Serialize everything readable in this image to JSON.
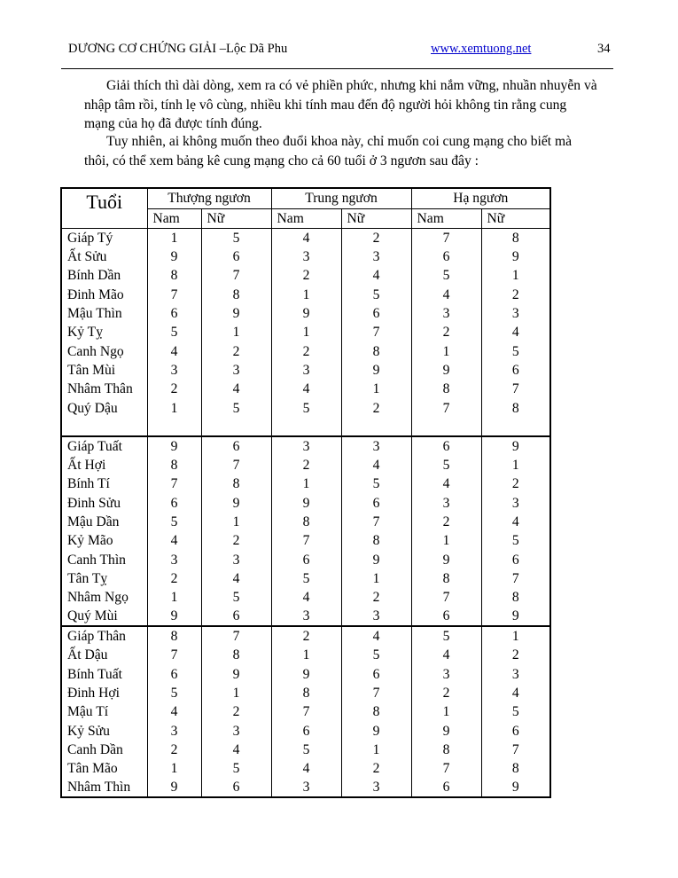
{
  "header": {
    "title": "DƯƠNG CƠ CHỨNG GIẢI –Lộc Dã Phu",
    "link": "www.xemtuong.net",
    "page_number": "34"
  },
  "paragraphs": [
    "Giải thích thì dài dòng, xem ra có vẻ phiền phức, nhưng khi nắm vững, nhuần nhuyễn và nhập tâm rồi, tính lẹ vô cùng, nhiều khi tính mau đến độ người hỏi không tin rằng cung mạng của họ đã được tính đúng.",
    "Tuy nhiên, ai không muốn theo đuổi khoa này, chỉ muốn coi cung mạng cho biết mà thôi, có thể xem bảng kê cung mạng cho cả 60 tuổi ở 3 ngươn sau đây :"
  ],
  "table": {
    "tuoi_header": "Tuổi",
    "groups": [
      "Thượng ngươn",
      "Trung ngươn",
      "Hạ ngươn"
    ],
    "sub": [
      "Nam",
      "Nữ",
      "Nam",
      "Nữ",
      "Nam",
      "Nữ"
    ],
    "sections": [
      [
        [
          "Giáp Tý",
          "1",
          "5",
          "4",
          "2",
          "7",
          "8"
        ],
        [
          "Ất Sửu",
          "9",
          "6",
          "3",
          "3",
          "6",
          "9"
        ],
        [
          "Bính Dần",
          "8",
          "7",
          "2",
          "4",
          "5",
          "1"
        ],
        [
          "Đinh Mão",
          "7",
          "8",
          "1",
          "5",
          "4",
          "2"
        ],
        [
          "Mậu Thìn",
          "6",
          "9",
          "9",
          "6",
          "3",
          "3"
        ],
        [
          "Kỷ Tỵ",
          "5",
          "1",
          "1",
          "7",
          "2",
          "4"
        ],
        [
          "Canh Ngọ",
          "4",
          "2",
          "2",
          "8",
          "1",
          "5"
        ],
        [
          "Tân Mùi",
          "3",
          "3",
          "3",
          "9",
          "9",
          "6"
        ],
        [
          "Nhâm Thân",
          "2",
          "4",
          "4",
          "1",
          "8",
          "7"
        ],
        [
          "Quý Dậu",
          "1",
          "5",
          "5",
          "2",
          "7",
          "8"
        ]
      ],
      [
        [
          "Giáp Tuất",
          "9",
          "6",
          "3",
          "3",
          "6",
          "9"
        ],
        [
          "Ất Hợi",
          "8",
          "7",
          "2",
          "4",
          "5",
          "1"
        ],
        [
          "Bính Tí",
          "7",
          "8",
          "1",
          "5",
          "4",
          "2"
        ],
        [
          "Đinh Sửu",
          "6",
          "9",
          "9",
          "6",
          "3",
          "3"
        ],
        [
          "Mậu Dần",
          "5",
          "1",
          "8",
          "7",
          "2",
          "4"
        ],
        [
          "Kỷ Mão",
          "4",
          "2",
          "7",
          "8",
          "1",
          "5"
        ],
        [
          "Canh Thìn",
          "3",
          "3",
          "6",
          "9",
          "9",
          "6"
        ],
        [
          "Tân Tỵ",
          "2",
          "4",
          "5",
          "1",
          "8",
          "7"
        ],
        [
          "Nhâm Ngọ",
          "1",
          "5",
          "4",
          "2",
          "7",
          "8"
        ],
        [
          "Quý Mùi",
          "9",
          "6",
          "3",
          "3",
          "6",
          "9"
        ]
      ],
      [
        [
          "Giáp Thân",
          "8",
          "7",
          "2",
          "4",
          "5",
          "1"
        ],
        [
          "Ất Dậu",
          "7",
          "8",
          "1",
          "5",
          "4",
          "2"
        ],
        [
          "Bính Tuất",
          "6",
          "9",
          "9",
          "6",
          "3",
          "3"
        ],
        [
          "Đinh Hợi",
          "5",
          "1",
          "8",
          "7",
          "2",
          "4"
        ],
        [
          "Mậu Tí",
          "4",
          "2",
          "7",
          "8",
          "1",
          "5"
        ],
        [
          "Kỷ Sửu",
          "3",
          "3",
          "6",
          "9",
          "9",
          "6"
        ],
        [
          "Canh Dần",
          "2",
          "4",
          "5",
          "1",
          "8",
          "7"
        ],
        [
          "Tân Mão",
          "1",
          "5",
          "4",
          "2",
          "7",
          "8"
        ],
        [
          "Nhâm Thìn",
          "9",
          "6",
          "3",
          "3",
          "6",
          "9"
        ]
      ]
    ]
  }
}
